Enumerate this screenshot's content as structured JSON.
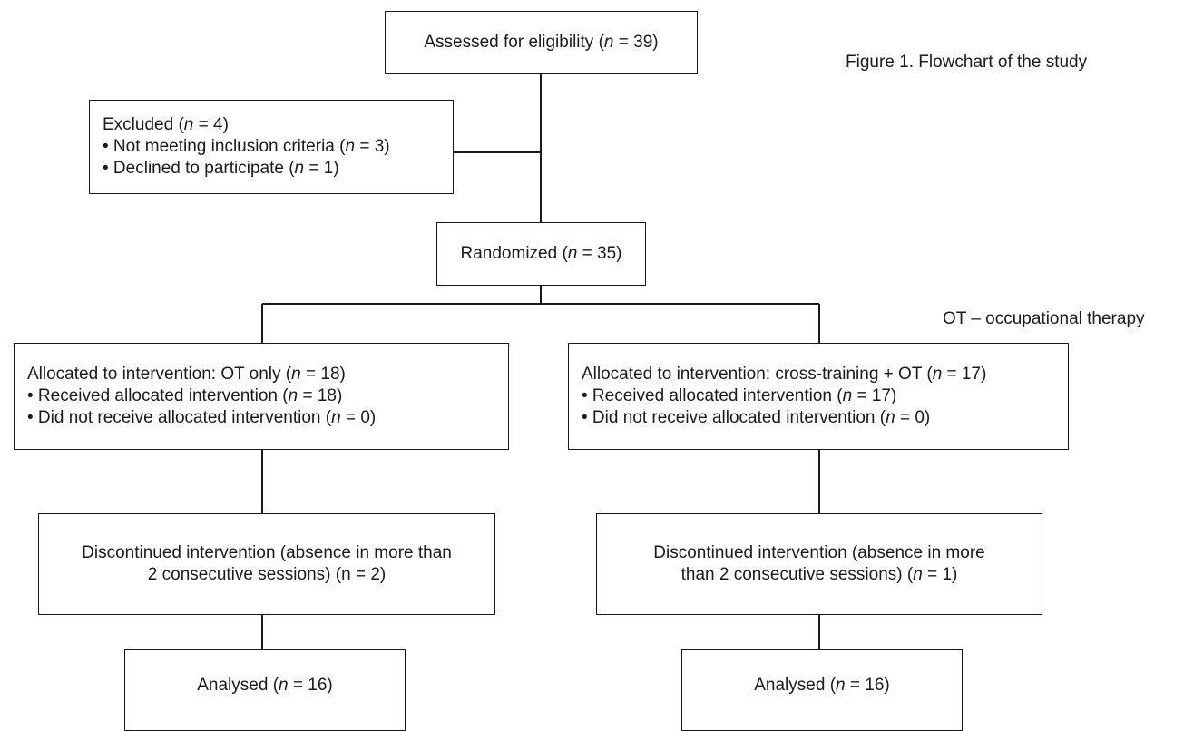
{
  "caption": "Figure 1. Flowchart of the study",
  "abbreviation": "OT – occupational therapy",
  "nodes": {
    "assessed": {
      "lines": [
        [
          "Assessed for eligibility (",
          "n",
          " = 39)"
        ]
      ]
    },
    "excluded": {
      "lines": [
        [
          "Excluded (",
          "n",
          " = 4)"
        ],
        [
          "• Not meeting inclusion criteria (",
          "n",
          " = 3)"
        ],
        [
          "• Declined to participate (",
          "n",
          " = 1)"
        ]
      ]
    },
    "randomized": {
      "lines": [
        [
          "Randomized (",
          "n",
          " = 35)"
        ]
      ]
    },
    "alloc_ot": {
      "lines": [
        [
          "Allocated to intervention: OT only (",
          "n",
          " = 18)"
        ],
        [
          "• Received allocated intervention (",
          "n",
          " = 18)"
        ],
        [
          "• Did not receive allocated intervention (",
          "n",
          " = 0)"
        ]
      ]
    },
    "alloc_ct": {
      "lines": [
        [
          "Allocated to intervention: cross-training + OT (",
          "n",
          " = 17)"
        ],
        [
          "• Received allocated intervention (",
          "n",
          " = 17)"
        ],
        [
          "• Did not receive allocated intervention (",
          "n",
          " = 0)"
        ]
      ]
    },
    "disc_ot": {
      "lines": [
        [
          "Discontinued intervention (absence in more than",
          "",
          ""
        ],
        [
          "2 consecutive sessions) (n = 2)",
          "",
          ""
        ]
      ]
    },
    "disc_ct": {
      "lines": [
        [
          "Discontinued intervention (absence in more",
          "",
          ""
        ],
        [
          "than 2 consecutive sessions) (",
          "n",
          " = 1)"
        ]
      ]
    },
    "analysed_ot": {
      "lines": [
        [
          "Analysed (",
          "n",
          " = 16)"
        ]
      ]
    },
    "analysed_ct": {
      "lines": [
        [
          "Analysed (",
          "n",
          " = 16)"
        ]
      ]
    }
  }
}
